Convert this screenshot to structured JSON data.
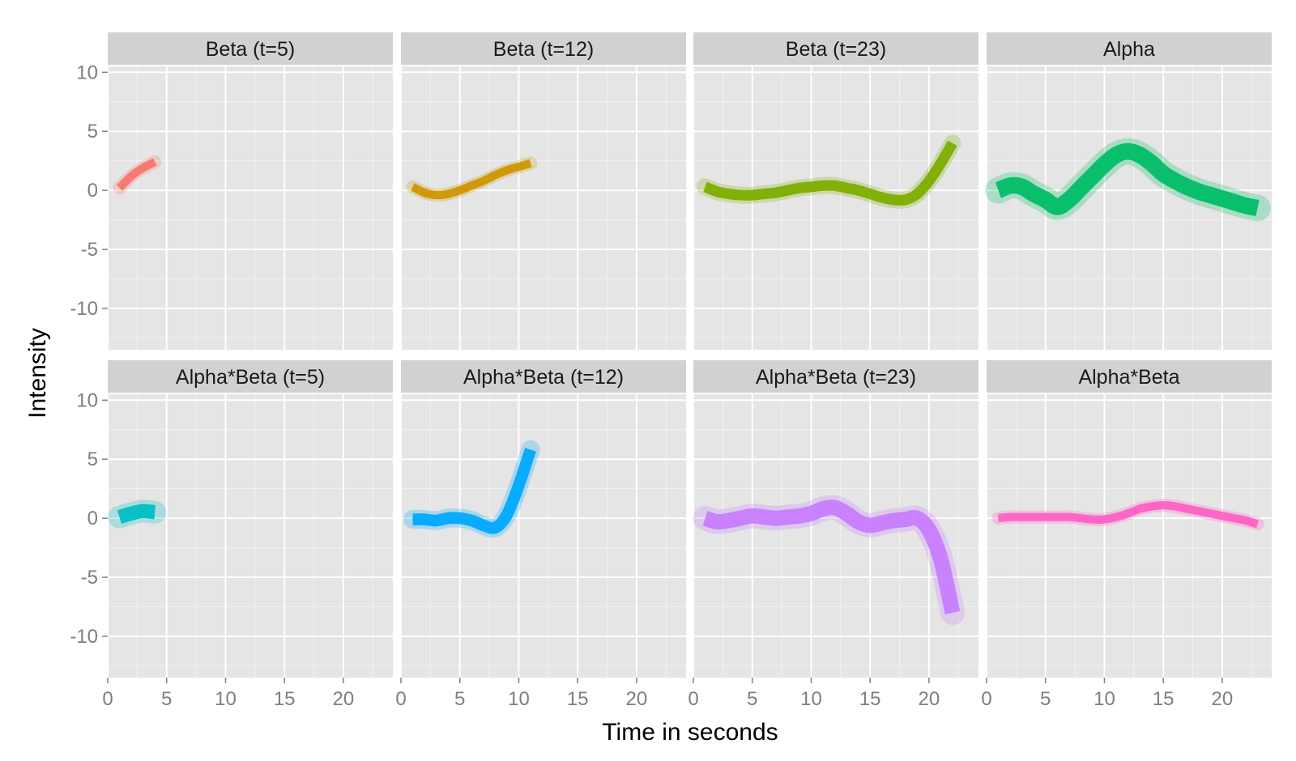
{
  "chart_data": {
    "type": "line",
    "xlabel": "Time in seconds",
    "ylabel": "Intensity",
    "xlim": [
      0,
      24.2
    ],
    "ylim": [
      -13.5,
      10.5
    ],
    "x_ticks": [
      0,
      5,
      10,
      15,
      20
    ],
    "y_ticks": [
      10,
      5,
      0,
      -5,
      -10
    ],
    "x_tick_labels": [
      "0",
      "5",
      "10",
      "15",
      "20"
    ],
    "y_tick_labels": [
      "10",
      "5",
      "0",
      "-5",
      "-10"
    ],
    "grid": true,
    "layout": "facet grid, 2 rows x 4 columns",
    "panels": [
      {
        "label": "Beta (t=5)",
        "color": "#F8766D",
        "band_width": 0.7,
        "x": [
          1,
          2,
          3,
          4
        ],
        "y": [
          0.2,
          1.2,
          1.9,
          2.4
        ]
      },
      {
        "label": "Beta (t=12)",
        "color": "#CD9600",
        "band_width": 0.7,
        "x": [
          1,
          2,
          3,
          4,
          5,
          6,
          7,
          8,
          9,
          10,
          11
        ],
        "y": [
          0.3,
          -0.2,
          -0.4,
          -0.3,
          0,
          0.4,
          0.8,
          1.3,
          1.7,
          2.0,
          2.3
        ]
      },
      {
        "label": "Beta (t=23)",
        "color": "#7CAE00",
        "band_width": 0.9,
        "x": [
          1,
          2,
          3,
          4,
          5,
          6,
          7,
          8,
          9,
          10,
          11,
          12,
          13,
          14,
          15,
          16,
          17,
          18,
          19,
          20,
          21,
          22
        ],
        "y": [
          0.3,
          -0.1,
          -0.3,
          -0.4,
          -0.4,
          -0.3,
          -0.2,
          0,
          0.2,
          0.3,
          0.4,
          0.4,
          0.2,
          0,
          -0.3,
          -0.6,
          -0.8,
          -0.8,
          -0.3,
          0.8,
          2.3,
          4.0
        ]
      },
      {
        "label": "Alpha",
        "color": "#00BE67",
        "band_width": 1.4,
        "x": [
          1,
          2,
          3,
          4,
          5,
          6,
          7,
          8,
          9,
          10,
          11,
          12,
          13,
          14,
          15,
          16,
          17,
          18,
          19,
          20,
          21,
          22,
          23
        ],
        "y": [
          0,
          0.4,
          0.3,
          -0.3,
          -0.8,
          -1.4,
          -0.8,
          0.2,
          1.2,
          2.2,
          3.0,
          3.3,
          3.0,
          2.3,
          1.4,
          0.8,
          0.3,
          -0.1,
          -0.4,
          -0.7,
          -1.0,
          -1.3,
          -1.5
        ]
      },
      {
        "label": "Alpha*Beta (t=5)",
        "color": "#00BFC4",
        "band_width": 1.2,
        "x": [
          1,
          2,
          3,
          4
        ],
        "y": [
          0.1,
          0.4,
          0.6,
          0.5
        ]
      },
      {
        "label": "Alpha*Beta (t=12)",
        "color": "#00A9FF",
        "band_width": 1.0,
        "x": [
          1,
          2,
          3,
          4,
          5,
          6,
          7,
          8,
          9,
          10,
          11
        ],
        "y": [
          -0.1,
          -0.1,
          -0.2,
          0,
          0,
          -0.2,
          -0.6,
          -0.8,
          0.3,
          2.8,
          5.8
        ]
      },
      {
        "label": "Alpha*Beta (t=23)",
        "color": "#C77CFF",
        "band_width": 1.3,
        "x": [
          1,
          2,
          3,
          4,
          5,
          6,
          7,
          8,
          9,
          10,
          11,
          12,
          13,
          14,
          15,
          16,
          17,
          18,
          19,
          20,
          21,
          22
        ],
        "y": [
          0,
          -0.3,
          -0.2,
          0,
          0.2,
          0.1,
          0,
          0.1,
          0.2,
          0.4,
          0.8,
          0.9,
          0.4,
          -0.3,
          -0.6,
          -0.4,
          -0.2,
          -0.1,
          0,
          -1.0,
          -3.5,
          -8.0
        ]
      },
      {
        "label": "Alpha*Beta",
        "color": "#FF61C3",
        "band_width": 0.7,
        "x": [
          1,
          2,
          3,
          4,
          5,
          6,
          7,
          8,
          9,
          10,
          11,
          12,
          13,
          14,
          15,
          16,
          17,
          18,
          19,
          20,
          21,
          22,
          23
        ],
        "y": [
          0,
          0.1,
          0.1,
          0.1,
          0.1,
          0.1,
          0.1,
          0,
          -0.1,
          -0.1,
          0.1,
          0.4,
          0.8,
          1.0,
          1.1,
          1.0,
          0.8,
          0.6,
          0.4,
          0.2,
          0,
          -0.2,
          -0.5
        ]
      }
    ]
  }
}
